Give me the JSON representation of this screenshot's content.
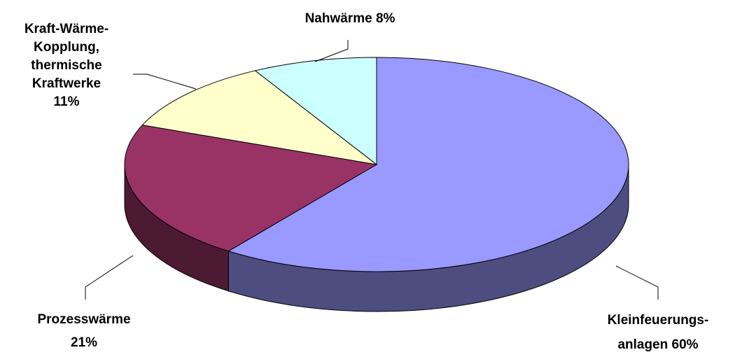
{
  "chart_data": {
    "type": "pie",
    "categories": [
      "Kleinfeuerungs-\nanlagen",
      "Prozesswärme",
      "Kraft-Wärme-\nKopplung,\nthermische\nKraftwerke",
      "Nahwärme"
    ],
    "values": [
      60,
      21,
      11,
      8
    ],
    "value_labels": [
      "60%",
      "21%",
      "11%",
      "8%"
    ],
    "colors": [
      "#9999ff",
      "#993366",
      "#ffffcc",
      "#ccffff"
    ]
  }
}
